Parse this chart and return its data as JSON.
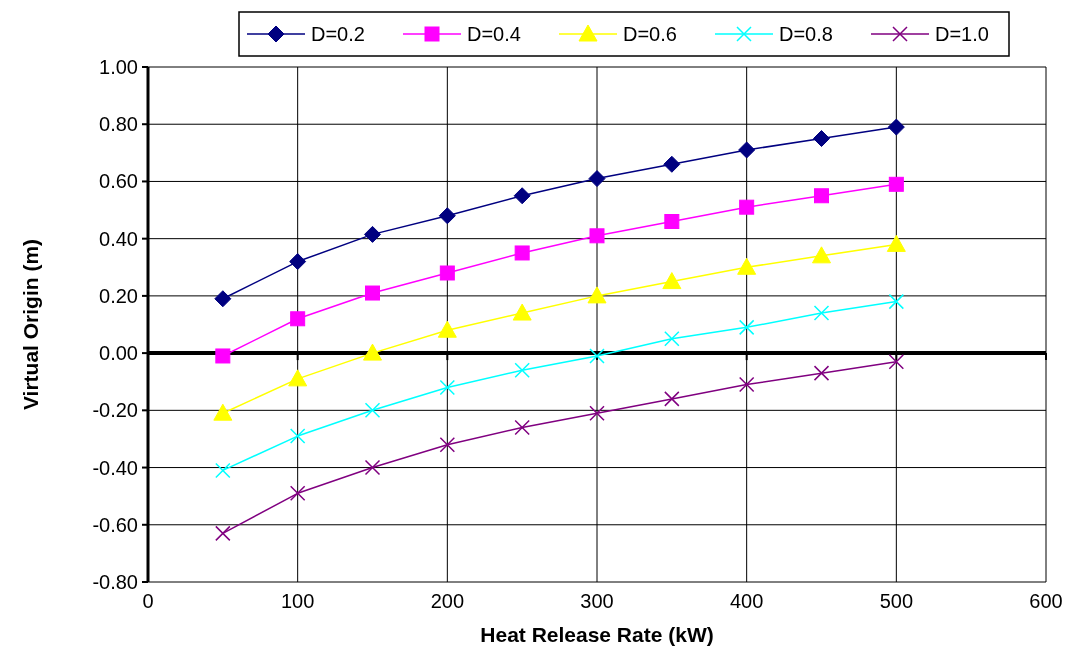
{
  "chart_data": {
    "type": "line",
    "xlabel": "Heat Release Rate (kW)",
    "ylabel": "Virtual Origin (m)",
    "x": [
      50,
      100,
      150,
      200,
      250,
      300,
      350,
      400,
      450,
      500
    ],
    "xlim": [
      0,
      600
    ],
    "xticks": [
      0,
      100,
      200,
      300,
      400,
      500,
      600
    ],
    "ylim": [
      -0.8,
      1.0
    ],
    "yticks": [
      {
        "value": -0.8,
        "label": "-0.80"
      },
      {
        "value": -0.6,
        "label": "-0.60"
      },
      {
        "value": -0.4,
        "label": "-0.40"
      },
      {
        "value": -0.2,
        "label": "-0.20"
      },
      {
        "value": 0,
        "label": "0.00"
      },
      {
        "value": 0.2,
        "label": "0.20"
      },
      {
        "value": 0.4,
        "label": "0.40"
      },
      {
        "value": 0.6,
        "label": "0.60"
      },
      {
        "value": 0.8,
        "label": "0.80"
      },
      {
        "value": 1.0,
        "label": "1.00"
      }
    ],
    "grid": true,
    "legend": "top",
    "series": [
      {
        "name": "D=0.2",
        "color": "#000080",
        "marker": "diamond",
        "values": [
          0.19,
          0.32,
          0.415,
          0.48,
          0.55,
          0.61,
          0.66,
          0.71,
          0.75,
          0.79
        ]
      },
      {
        "name": "D=0.4",
        "color": "#ff00ff",
        "marker": "square",
        "values": [
          -0.01,
          0.12,
          0.21,
          0.28,
          0.35,
          0.41,
          0.46,
          0.51,
          0.55,
          0.59
        ]
      },
      {
        "name": "D=0.6",
        "color": "#ffff00",
        "marker": "triangle",
        "values": [
          -0.21,
          -0.09,
          0.0,
          0.08,
          0.14,
          0.2,
          0.25,
          0.3,
          0.34,
          0.38
        ]
      },
      {
        "name": "D=0.8",
        "color": "#00ffff",
        "marker": "cross",
        "values": [
          -0.41,
          -0.29,
          -0.2,
          -0.12,
          -0.06,
          -0.01,
          0.05,
          0.09,
          0.14,
          0.18
        ]
      },
      {
        "name": "D=1.0",
        "color": "#800080",
        "marker": "cross",
        "values": [
          -0.63,
          -0.49,
          -0.4,
          -0.32,
          -0.26,
          -0.21,
          -0.16,
          -0.11,
          -0.07,
          -0.03
        ]
      }
    ]
  }
}
